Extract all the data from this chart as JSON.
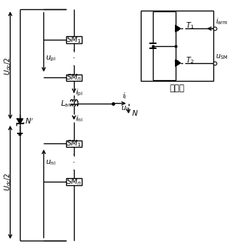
{
  "fig_width": 3.22,
  "fig_height": 3.48,
  "dpi": 100,
  "bg_color": "#ffffff",
  "line_color": "#000000",
  "line_width": 1.0,
  "font_size": 7.5
}
